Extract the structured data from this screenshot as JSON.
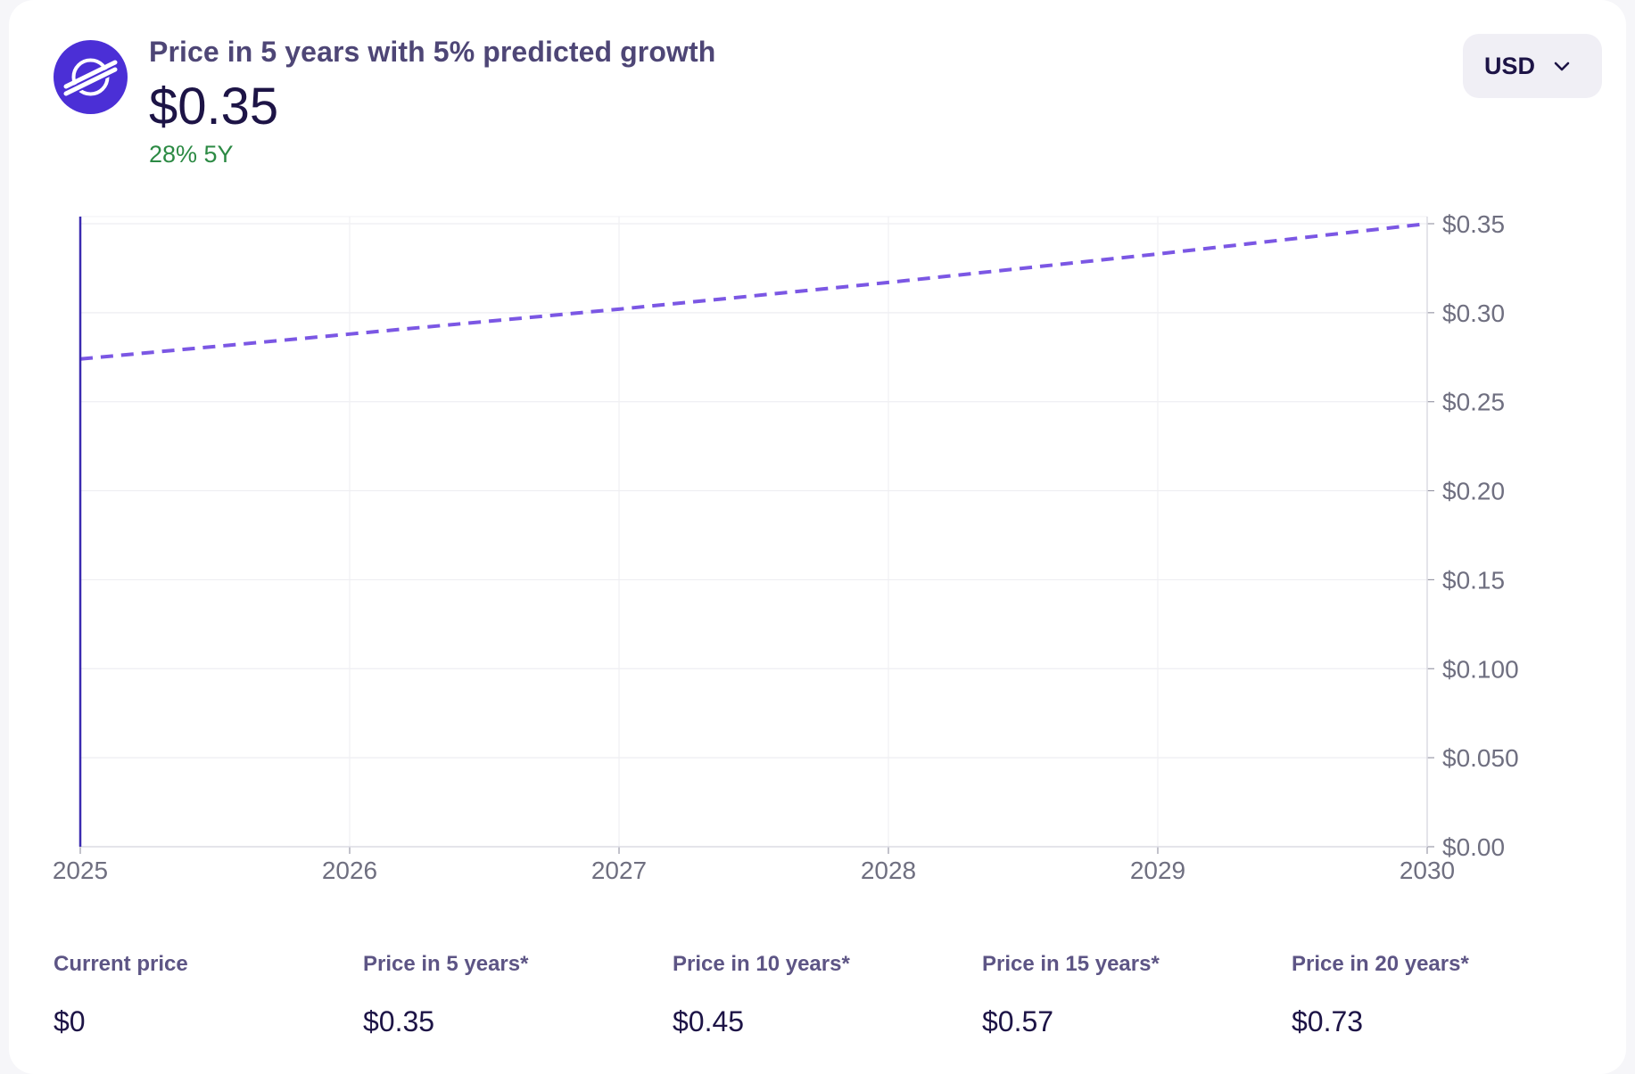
{
  "header": {
    "title": "Price in 5 years with 5% predicted growth",
    "price": "$0.35",
    "change": "28% 5Y",
    "logo_icon": "stellar-logo-icon",
    "logo_color": "#4b2fd6"
  },
  "currency_selector": {
    "value": "USD",
    "icon": "chevron-down-icon"
  },
  "chart_data": {
    "type": "line",
    "x_ticks": [
      "2025",
      "2026",
      "2027",
      "2028",
      "2029",
      "2030"
    ],
    "y_ticks": [
      "$0.00",
      "$0.050",
      "$0.100",
      "$0.15",
      "$0.20",
      "$0.25",
      "$0.30",
      "$0.35"
    ],
    "y_tick_values": [
      0,
      0.05,
      0.1,
      0.15,
      0.2,
      0.25,
      0.3,
      0.35
    ],
    "xlim": [
      2025,
      2030
    ],
    "ylim": [
      0,
      0.35
    ],
    "series": [
      {
        "style": "dashed",
        "color": "#7b57e4",
        "x": [
          2025,
          2026,
          2027,
          2028,
          2029,
          2030
        ],
        "values": [
          0.274,
          0.288,
          0.302,
          0.317,
          0.333,
          0.35
        ]
      }
    ],
    "grid": true,
    "y_axis_side": "right",
    "current_marker_color": "#3b2bb0"
  },
  "stats": [
    {
      "label": "Current price",
      "value": "$0"
    },
    {
      "label": "Price in 5 years*",
      "value": "$0.35"
    },
    {
      "label": "Price in 10 years*",
      "value": "$0.45"
    },
    {
      "label": "Price in 15 years*",
      "value": "$0.57"
    },
    {
      "label": "Price in 20 years*",
      "value": "$0.73"
    }
  ]
}
